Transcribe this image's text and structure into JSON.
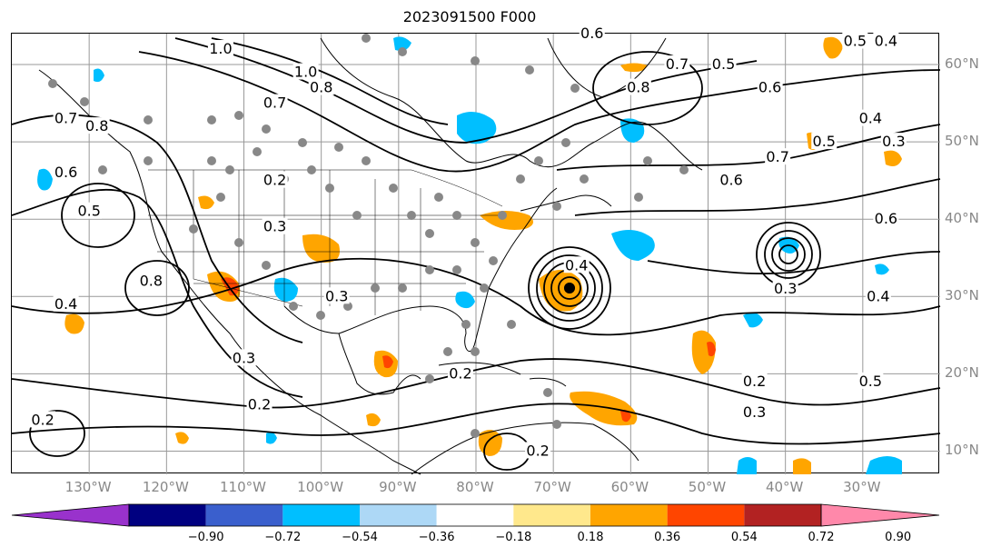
{
  "title": "2023091500 F000",
  "map": {
    "xticks": [
      {
        "lon": -130,
        "label": "130°W"
      },
      {
        "lon": -120,
        "label": "120°W"
      },
      {
        "lon": -110,
        "label": "110°W"
      },
      {
        "lon": -100,
        "label": "100°W"
      },
      {
        "lon": -90,
        "label": "90°W"
      },
      {
        "lon": -80,
        "label": "80°W"
      },
      {
        "lon": -70,
        "label": "70°W"
      },
      {
        "lon": -60,
        "label": "60°W"
      },
      {
        "lon": -50,
        "label": "50°W"
      },
      {
        "lon": -40,
        "label": "40°W"
      },
      {
        "lon": -30,
        "label": "30°W"
      }
    ],
    "yticks": [
      {
        "lat": 60,
        "label": "60°N"
      },
      {
        "lat": 50,
        "label": "50°N"
      },
      {
        "lat": 40,
        "label": "40°N"
      },
      {
        "lat": 30,
        "label": "30°N"
      },
      {
        "lat": 20,
        "label": "20°N"
      },
      {
        "lat": 10,
        "label": "10°N"
      }
    ],
    "contour_labels": [
      {
        "text": "1.0",
        "lon": -113,
        "lat": 62
      },
      {
        "text": "1.0",
        "lon": -102,
        "lat": 59
      },
      {
        "text": "0.8",
        "lon": -100,
        "lat": 57
      },
      {
        "text": "0.7",
        "lon": -106,
        "lat": 55
      },
      {
        "text": "0.8",
        "lon": -59,
        "lat": 57
      },
      {
        "text": "0.7",
        "lon": -54,
        "lat": 60
      },
      {
        "text": "0.5",
        "lon": -48,
        "lat": 60
      },
      {
        "text": "0.6",
        "lon": -42,
        "lat": 57
      },
      {
        "text": "0.6",
        "lon": -65,
        "lat": 64
      },
      {
        "text": "0.4",
        "lon": -27,
        "lat": 63
      },
      {
        "text": "0.5",
        "lon": -31,
        "lat": 63
      },
      {
        "text": "0.4",
        "lon": -29,
        "lat": 53
      },
      {
        "text": "0.5",
        "lon": -35,
        "lat": 50
      },
      {
        "text": "0.3",
        "lon": -26,
        "lat": 50
      },
      {
        "text": "0.7",
        "lon": -41,
        "lat": 48
      },
      {
        "text": "0.6",
        "lon": -47,
        "lat": 45
      },
      {
        "text": "0.6",
        "lon": -27,
        "lat": 40
      },
      {
        "text": "0.4",
        "lon": -67,
        "lat": 34
      },
      {
        "text": "0.3",
        "lon": -40,
        "lat": 31
      },
      {
        "text": "0.4",
        "lon": -28,
        "lat": 30
      },
      {
        "text": "0.5",
        "lon": -29,
        "lat": 19
      },
      {
        "text": "0.2",
        "lon": -44,
        "lat": 19
      },
      {
        "text": "0.3",
        "lon": -44,
        "lat": 15
      },
      {
        "text": "0.2",
        "lon": -108,
        "lat": 16
      },
      {
        "text": "0.2",
        "lon": -136,
        "lat": 14
      },
      {
        "text": "0.4",
        "lon": -133,
        "lat": 29
      },
      {
        "text": "0.3",
        "lon": -106,
        "lat": 39
      },
      {
        "text": "0.2",
        "lon": -106,
        "lat": 45
      },
      {
        "text": "0.3",
        "lon": -98,
        "lat": 30
      },
      {
        "text": "0.3",
        "lon": -110,
        "lat": 22
      },
      {
        "text": "0.8",
        "lon": -129,
        "lat": 52
      },
      {
        "text": "0.7",
        "lon": -133,
        "lat": 53
      },
      {
        "text": "0.8",
        "lon": -122,
        "lat": 32
      },
      {
        "text": "0.5",
        "lon": -130,
        "lat": 41
      },
      {
        "text": "0.6",
        "lon": -133,
        "lat": 46
      },
      {
        "text": "0.2",
        "lon": -82,
        "lat": 20
      },
      {
        "text": "0.2",
        "lon": -72,
        "lat": 10
      }
    ],
    "colors": {
      "contour": "#000000",
      "coast": "#000000",
      "grid": "#999999",
      "neg_strong": "#00BFFF",
      "pos_weak": "#FFA500",
      "pos_mid": "#FF4500",
      "dots": "#888888"
    }
  },
  "colorbar": {
    "levels": [
      "−0.90",
      "−0.72",
      "−0.54",
      "−0.36",
      "−0.18",
      "0.18",
      "0.36",
      "0.54",
      "0.72",
      "0.90"
    ],
    "colors": [
      "#9932CC",
      "#000080",
      "#3A5FCD",
      "#00BFFF",
      "#ADD8F6",
      "#FFFFFF",
      "#FFE88C",
      "#FFA500",
      "#FF4500",
      "#B22222",
      "#FF88AA"
    ]
  }
}
